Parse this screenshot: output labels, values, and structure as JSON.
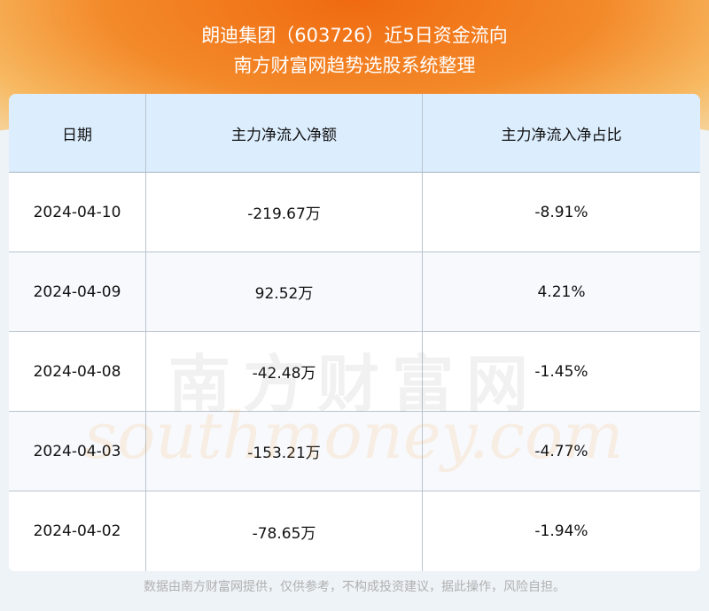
{
  "header": {
    "title": "朗迪集团（603726）近5日资金流向",
    "subtitle": "南方财富网趋势选股系统整理"
  },
  "table": {
    "columns": [
      "日期",
      "主力净流入净额",
      "主力净流入净占比"
    ],
    "rows": [
      [
        "2024-04-10",
        "-219.67万",
        "-8.91%"
      ],
      [
        "2024-04-09",
        "92.52万",
        "4.21%"
      ],
      [
        "2024-04-08",
        "-42.48万",
        "-1.45%"
      ],
      [
        "2024-04-03",
        "-153.21万",
        "-4.77%"
      ],
      [
        "2024-04-02",
        "-78.65万",
        "-1.94%"
      ]
    ]
  },
  "watermark": {
    "cn": "南方财富网",
    "en": "southmoney.com"
  },
  "footer": "数据由南方财富网提供，仅供参考，不构成投资建议，据此操作，风险自担。"
}
